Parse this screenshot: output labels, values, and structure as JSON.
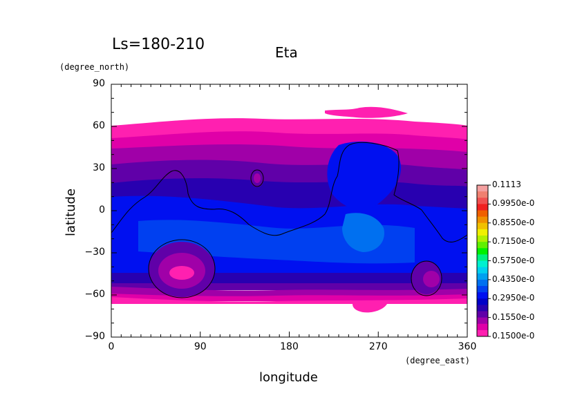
{
  "chart_data": {
    "type": "heatmap",
    "title": "Eta",
    "subtitle": "Ls=180-210",
    "xlabel": "longitude",
    "ylabel": "latitude",
    "x_units": "(degree_east)",
    "y_units": "(degree_north)",
    "xlim": [
      0,
      360
    ],
    "ylim": [
      -90,
      90
    ],
    "x_ticks": [
      0,
      90,
      180,
      270,
      360
    ],
    "y_ticks": [
      90,
      60,
      30,
      0,
      -30,
      -60,
      -90
    ],
    "grid": false,
    "colorbar": {
      "placement": "right",
      "labels": [
        "0.1113",
        "0.9950e-0",
        "0.8550e-0",
        "0.7150e-0",
        "0.5750e-0",
        "0.4350e-0",
        "0.2950e-0",
        "0.1550e-0",
        "0.1500e-0"
      ],
      "colors": [
        "#f4a0a0",
        "#f08070",
        "#f05050",
        "#f02020",
        "#f06000",
        "#f09000",
        "#f0c000",
        "#f0f000",
        "#b0f000",
        "#60f000",
        "#00f000",
        "#00f080",
        "#00f0d0",
        "#00d0f0",
        "#00a0f0",
        "#0070f0",
        "#0040f0",
        "#0010f0",
        "#0000c8",
        "#2800b0",
        "#6000a8",
        "#a000a8",
        "#e000a8",
        "#ff20b0"
      ]
    },
    "bands_description": "Zonal bands of low Eta values: blue/purple over mid-latitudes, magenta near ±60 deg, white (no data) poleward"
  },
  "icons": {
    "frame": "plot-frame",
    "colorbar": "colorbar"
  }
}
